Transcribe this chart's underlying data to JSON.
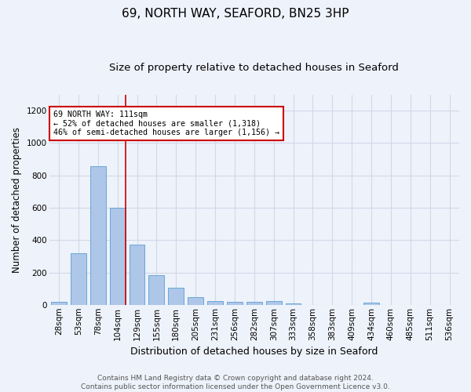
{
  "title": "69, NORTH WAY, SEAFORD, BN25 3HP",
  "subtitle": "Size of property relative to detached houses in Seaford",
  "xlabel": "Distribution of detached houses by size in Seaford",
  "ylabel": "Number of detached properties",
  "categories": [
    "28sqm",
    "53sqm",
    "78sqm",
    "104sqm",
    "129sqm",
    "155sqm",
    "180sqm",
    "205sqm",
    "231sqm",
    "256sqm",
    "282sqm",
    "307sqm",
    "333sqm",
    "358sqm",
    "383sqm",
    "409sqm",
    "434sqm",
    "460sqm",
    "485sqm",
    "511sqm",
    "536sqm"
  ],
  "values": [
    18,
    318,
    855,
    600,
    370,
    185,
    105,
    47,
    22,
    18,
    18,
    22,
    10,
    0,
    0,
    0,
    12,
    0,
    0,
    0,
    0
  ],
  "bar_color": "#aec6e8",
  "bar_edgecolor": "#5a9fd4",
  "property_line_x": 3,
  "property_line_label": "69 NORTH WAY: 111sqm",
  "annotation_line1": "← 52% of detached houses are smaller (1,318)",
  "annotation_line2": "46% of semi-detached houses are larger (1,156) →",
  "annotation_box_color": "#ffffff",
  "annotation_box_edgecolor": "#cc0000",
  "vline_color": "#cc0000",
  "ylim": [
    0,
    1300
  ],
  "yticks": [
    0,
    200,
    400,
    600,
    800,
    1000,
    1200
  ],
  "grid_color": "#d0d8e8",
  "background_color": "#eef2fa",
  "footer_line1": "Contains HM Land Registry data © Crown copyright and database right 2024.",
  "footer_line2": "Contains public sector information licensed under the Open Government Licence v3.0.",
  "title_fontsize": 11,
  "subtitle_fontsize": 9.5,
  "xlabel_fontsize": 9,
  "ylabel_fontsize": 8.5,
  "tick_fontsize": 7.5,
  "footer_fontsize": 6.5
}
